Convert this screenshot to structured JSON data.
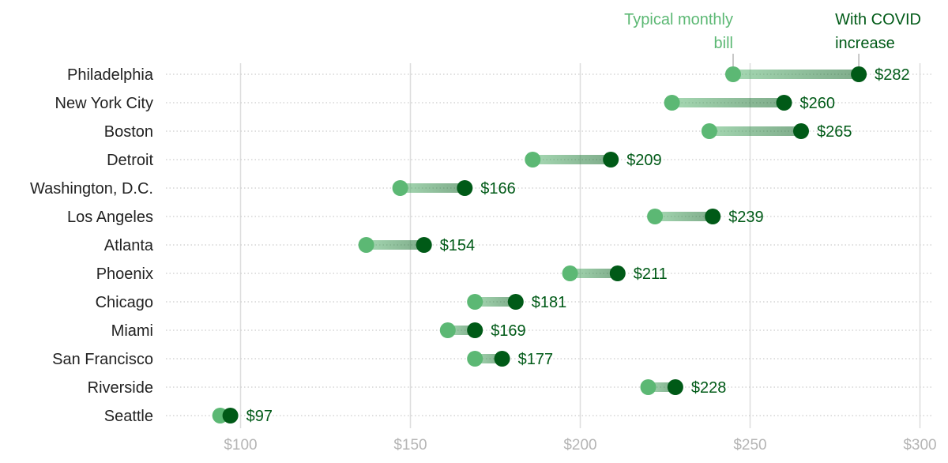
{
  "colors": {
    "light": "#5cb874",
    "dark": "#005a17",
    "grid": "#dddddd",
    "dots": "#cccccc",
    "tick": "#b5b5b5",
    "city": "#222222"
  },
  "legend": {
    "typical_line1": "Typical monthly",
    "typical_line2": "bill",
    "covid_line1": "With COVID",
    "covid_line2": "increase"
  },
  "chart_data": {
    "type": "dumbbell",
    "title": "",
    "xlabel": "",
    "ylabel": "",
    "xlim": [
      78,
      300
    ],
    "x_ticks": [
      {
        "value": 100,
        "label": "$100"
      },
      {
        "value": 150,
        "label": "$150"
      },
      {
        "value": 200,
        "label": "$200"
      },
      {
        "value": 250,
        "label": "$250"
      },
      {
        "value": 300,
        "label": "$300"
      }
    ],
    "grid": true,
    "series_names": [
      "Typical monthly bill",
      "With COVID increase"
    ],
    "rows": [
      {
        "city": "Philadelphia",
        "typical": 245,
        "covid": 282,
        "label": "$282"
      },
      {
        "city": "New York City",
        "typical": 227,
        "covid": 260,
        "label": "$260"
      },
      {
        "city": "Boston",
        "typical": 238,
        "covid": 265,
        "label": "$265"
      },
      {
        "city": "Detroit",
        "typical": 186,
        "covid": 209,
        "label": "$209"
      },
      {
        "city": "Washington, D.C.",
        "typical": 147,
        "covid": 166,
        "label": "$166"
      },
      {
        "city": "Los Angeles",
        "typical": 222,
        "covid": 239,
        "label": "$239"
      },
      {
        "city": "Atlanta",
        "typical": 137,
        "covid": 154,
        "label": "$154"
      },
      {
        "city": "Phoenix",
        "typical": 197,
        "covid": 211,
        "label": "$211"
      },
      {
        "city": "Chicago",
        "typical": 169,
        "covid": 181,
        "label": "$181"
      },
      {
        "city": "Miami",
        "typical": 161,
        "covid": 169,
        "label": "$169"
      },
      {
        "city": "San Francisco",
        "typical": 169,
        "covid": 177,
        "label": "$177"
      },
      {
        "city": "Riverside",
        "typical": 220,
        "covid": 228,
        "label": "$228"
      },
      {
        "city": "Seattle",
        "typical": 94,
        "covid": 97,
        "label": "$97"
      }
    ]
  }
}
